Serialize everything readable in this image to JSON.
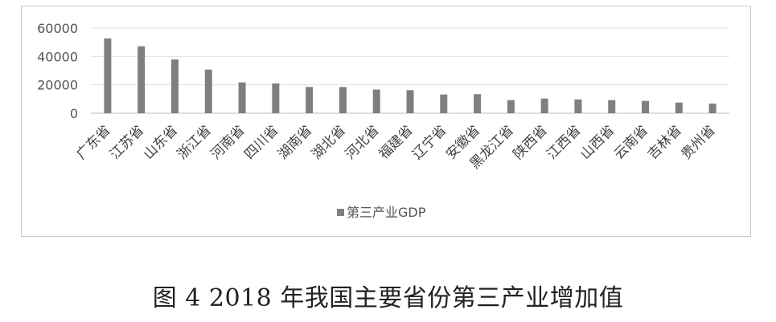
{
  "chart_data": {
    "type": "bar",
    "title": "",
    "xlabel": "",
    "ylabel": "",
    "categories": [
      "广东省",
      "江苏省",
      "山东省",
      "浙江省",
      "河南省",
      "四川省",
      "湖南省",
      "湖北省",
      "河北省",
      "福建省",
      "辽宁省",
      "安徽省",
      "黑龙江省",
      "陕西省",
      "江西省",
      "山西省",
      "云南省",
      "吉林省",
      "贵州省"
    ],
    "series": [
      {
        "name": "第三产业GDP",
        "values": [
          52751,
          47205,
          37877,
          30719,
          21731,
          20988,
          18507,
          18472,
          16694,
          16226,
          13200,
          13443,
          9230,
          10348,
          9712,
          9226,
          8665,
          7500,
          6813
        ]
      }
    ],
    "yticks": [
      "0",
      "20000",
      "40000",
      "60000"
    ],
    "ylim": [
      0,
      60000
    ],
    "grid": true,
    "legend_position": "bottom",
    "bar_color": "#7f7f7f"
  },
  "caption": "图 4 2018 年我国主要省份第三产业增加值"
}
